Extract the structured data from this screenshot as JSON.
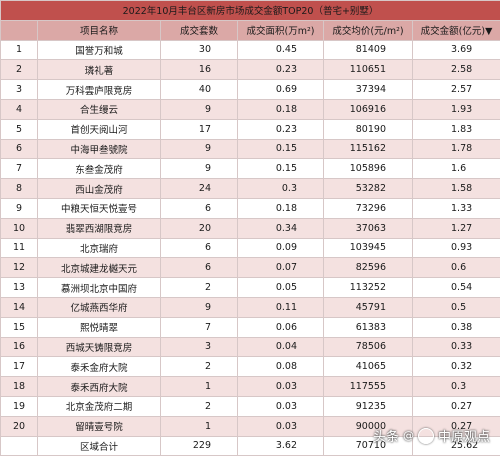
{
  "title": "2022年10月丰台区新房市场成交金额TOP20（普宅+别墅）",
  "columns": [
    "",
    "项目名称",
    "成交套数",
    "成交面积(万m²)",
    "成交均价(元/m²)",
    "成交金额(亿元)▼"
  ],
  "rows": [
    {
      "idx": "1",
      "name": "国誉万和城",
      "units": "30",
      "area": "0.45",
      "price": "81409",
      "amount": "3.69"
    },
    {
      "idx": "2",
      "name": "璘礼著",
      "units": "16",
      "area": "0.23",
      "price": "110651",
      "amount": "2.58"
    },
    {
      "idx": "3",
      "name": "万科雲庐限竞房",
      "units": "40",
      "area": "0.69",
      "price": "37394",
      "amount": "2.57"
    },
    {
      "idx": "4",
      "name": "合生缦云",
      "units": "9",
      "area": "0.18",
      "price": "106916",
      "amount": "1.93"
    },
    {
      "idx": "5",
      "name": "首创天阅山河",
      "units": "17",
      "area": "0.23",
      "price": "80190",
      "amount": "1.83"
    },
    {
      "idx": "6",
      "name": "中海甲叁號院",
      "units": "9",
      "area": "0.15",
      "price": "115162",
      "amount": "1.78"
    },
    {
      "idx": "7",
      "name": "东叁金茂府",
      "units": "9",
      "area": "0.15",
      "price": "105896",
      "amount": "1.6"
    },
    {
      "idx": "8",
      "name": "西山金茂府",
      "units": "24",
      "area": "0.3",
      "price": "53282",
      "amount": "1.58"
    },
    {
      "idx": "9",
      "name": "中粮天恒天悦壹号",
      "units": "6",
      "area": "0.18",
      "price": "73296",
      "amount": "1.33"
    },
    {
      "idx": "10",
      "name": "翡翠西湖限竞房",
      "units": "20",
      "area": "0.34",
      "price": "37063",
      "amount": "1.27"
    },
    {
      "idx": "11",
      "name": "北京瑞府",
      "units": "6",
      "area": "0.09",
      "price": "103945",
      "amount": "0.93"
    },
    {
      "idx": "12",
      "name": "北京城建龙樾天元",
      "units": "6",
      "area": "0.07",
      "price": "82596",
      "amount": "0.6"
    },
    {
      "idx": "13",
      "name": "慕洲坝北京中国府",
      "units": "2",
      "area": "0.05",
      "price": "113252",
      "amount": "0.54"
    },
    {
      "idx": "14",
      "name": "亿城燕西华府",
      "units": "9",
      "area": "0.11",
      "price": "45791",
      "amount": "0.5"
    },
    {
      "idx": "15",
      "name": "熙悦晴翠",
      "units": "7",
      "area": "0.06",
      "price": "61383",
      "amount": "0.38"
    },
    {
      "idx": "16",
      "name": "西城天铸限竞房",
      "units": "3",
      "area": "0.04",
      "price": "78506",
      "amount": "0.33"
    },
    {
      "idx": "17",
      "name": "泰禾金府大院",
      "units": "2",
      "area": "0.08",
      "price": "41065",
      "amount": "0.32"
    },
    {
      "idx": "18",
      "name": "泰禾西府大院",
      "units": "1",
      "area": "0.03",
      "price": "117555",
      "amount": "0.3"
    },
    {
      "idx": "19",
      "name": "北京金茂府二期",
      "units": "2",
      "area": "0.03",
      "price": "91235",
      "amount": "0.27"
    },
    {
      "idx": "20",
      "name": "留晴壹号院",
      "units": "1",
      "area": "0.03",
      "price": "90000",
      "amount": "0.27"
    }
  ],
  "total": {
    "label": "区域合计",
    "units": "229",
    "area": "3.62",
    "price": "70710",
    "amount": "25.62"
  },
  "watermark": {
    "source": "头条",
    "sep": "@",
    "author": "中原观点"
  }
}
